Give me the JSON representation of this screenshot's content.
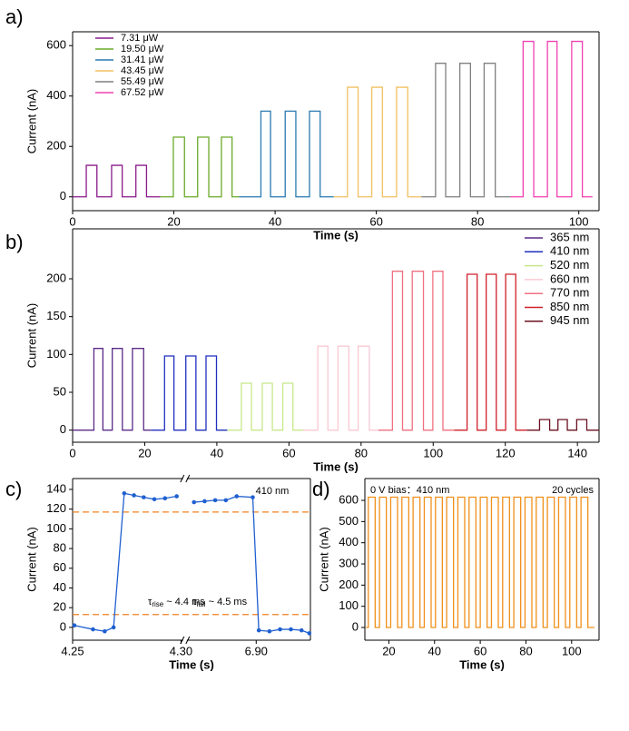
{
  "chart_data": [
    {
      "type": "line",
      "panel_label": "a)",
      "xlabel": "Time (s)",
      "ylabel": "Current (nA)",
      "legend": "upper left",
      "xlim": [
        0,
        104
      ],
      "ylim": [
        -55,
        655
      ],
      "xticks": [
        0,
        20,
        40,
        60,
        80,
        100
      ],
      "yticks": [
        0,
        200,
        400,
        600
      ],
      "series": [
        {
          "name": "7.31 μW",
          "color": "#8b1a8b",
          "x": [
            0,
            2.7,
            2.7,
            4.8,
            4.8,
            7.7,
            7.7,
            9.8,
            9.8,
            12.5,
            12.5,
            14.6,
            14.6,
            17.3
          ],
          "values": [
            0,
            0,
            125,
            125,
            0,
            0,
            125,
            125,
            0,
            0,
            125,
            125,
            0,
            0
          ]
        },
        {
          "name": "19.50 μW",
          "color": "#6aaa2a",
          "x": [
            17.3,
            19.9,
            19.9,
            22.1,
            22.1,
            24.7,
            24.7,
            26.9,
            26.9,
            29.4,
            29.4,
            31.5,
            31.5,
            32.9
          ],
          "values": [
            0,
            0,
            237,
            237,
            0,
            0,
            237,
            237,
            0,
            0,
            237,
            237,
            0,
            0
          ]
        },
        {
          "name": "31.41 μW",
          "color": "#2a7ab0",
          "x": [
            32.9,
            37.2,
            37.2,
            39.1,
            39.1,
            42.0,
            42.0,
            44.1,
            44.1,
            46.8,
            46.8,
            48.9,
            48.9,
            51.6
          ],
          "values": [
            0,
            0,
            340,
            340,
            0,
            0,
            340,
            340,
            0,
            0,
            340,
            340,
            0,
            0
          ]
        },
        {
          "name": "43.45 μW",
          "color": "#f0c060",
          "x": [
            51.6,
            54.3,
            54.3,
            56.4,
            56.4,
            59.1,
            59.1,
            61.2,
            61.2,
            64.0,
            64.0,
            66.2,
            66.2,
            68.9
          ],
          "values": [
            0,
            0,
            435,
            435,
            0,
            0,
            435,
            435,
            0,
            0,
            435,
            435,
            0,
            0
          ]
        },
        {
          "name": "55.49 μW",
          "color": "#808080",
          "x": [
            68.9,
            71.7,
            71.7,
            73.7,
            73.7,
            76.5,
            76.5,
            78.6,
            78.6,
            81.3,
            81.3,
            83.5,
            83.5,
            86.5
          ],
          "values": [
            0,
            0,
            530,
            530,
            0,
            0,
            530,
            530,
            0,
            0,
            530,
            530,
            0,
            0
          ]
        },
        {
          "name": "67.52 μW",
          "color": "#f040b0",
          "x": [
            86.5,
            89.0,
            89.0,
            91.1,
            91.1,
            93.8,
            93.8,
            95.7,
            95.7,
            98.6,
            98.6,
            100.7,
            100.7,
            102.7
          ],
          "values": [
            0,
            0,
            617,
            617,
            0,
            0,
            617,
            617,
            0,
            0,
            617,
            617,
            0,
            0
          ]
        }
      ]
    },
    {
      "type": "line",
      "panel_label": "b)",
      "xlabel": "Time (s)",
      "ylabel": "Current (nA)",
      "legend": "upper right",
      "xlim": [
        0,
        146
      ],
      "ylim": [
        -16,
        266
      ],
      "xticks": [
        0,
        20,
        40,
        60,
        80,
        100,
        120,
        140
      ],
      "yticks": [
        0,
        50,
        100,
        150,
        200
      ],
      "series": [
        {
          "name": "365 nm",
          "color": "#5b2a86",
          "x": [
            0,
            5.9,
            5.9,
            8.4,
            8.4,
            11.0,
            11.0,
            13.8,
            13.8,
            16.6,
            16.6,
            19.7,
            19.7,
            21.7
          ],
          "values": [
            0,
            0,
            108,
            108,
            0,
            0,
            108,
            108,
            0,
            0,
            108,
            108,
            0,
            0
          ]
        },
        {
          "name": "410 nm",
          "color": "#1f2fbf",
          "x": [
            21.7,
            25.5,
            25.5,
            28.1,
            28.1,
            31.4,
            31.4,
            34.2,
            34.2,
            37.0,
            37.0,
            39.9,
            39.9,
            42.9
          ],
          "values": [
            0,
            0,
            98,
            98,
            0,
            0,
            98,
            98,
            0,
            0,
            98,
            98,
            0,
            0
          ]
        },
        {
          "name": "520 nm",
          "color": "#c8e88a",
          "x": [
            42.9,
            46.8,
            46.8,
            49.6,
            49.6,
            52.6,
            52.6,
            55.4,
            55.4,
            58.3,
            58.3,
            61.1,
            61.1,
            63.9
          ],
          "values": [
            0,
            0,
            62,
            62,
            0,
            0,
            62,
            62,
            0,
            0,
            62,
            62,
            0,
            0
          ]
        },
        {
          "name": "660 nm",
          "color": "#f9c9d4",
          "x": [
            63.9,
            68.0,
            68.0,
            70.8,
            70.8,
            73.6,
            73.6,
            76.6,
            76.6,
            79.2,
            79.2,
            82.3,
            82.3,
            84.8
          ],
          "values": [
            0,
            0,
            111,
            111,
            0,
            0,
            111,
            111,
            0,
            0,
            111,
            111,
            0,
            0
          ]
        },
        {
          "name": "770 nm",
          "color": "#f07080",
          "x": [
            84.8,
            88.7,
            88.7,
            91.5,
            91.5,
            94.2,
            94.2,
            97.3,
            97.3,
            99.9,
            99.9,
            102.7,
            102.7,
            105.8
          ],
          "values": [
            0,
            0,
            210,
            210,
            0,
            0,
            210,
            210,
            0,
            0,
            210,
            210,
            0,
            0
          ]
        },
        {
          "name": "850 nm",
          "color": "#d0202a",
          "x": [
            105.8,
            109.4,
            109.4,
            112.2,
            112.2,
            114.7,
            114.7,
            117.5,
            117.5,
            120.1,
            120.1,
            122.9,
            122.9,
            126.0
          ],
          "values": [
            0,
            0,
            206,
            206,
            0,
            0,
            206,
            206,
            0,
            0,
            206,
            206,
            0,
            0
          ]
        },
        {
          "name": "945 nm",
          "color": "#6b1020",
          "x": [
            126.0,
            129.5,
            129.5,
            132.3,
            132.3,
            134.6,
            134.6,
            137.2,
            137.2,
            139.8,
            139.8,
            142.6,
            142.6,
            146.0
          ],
          "values": [
            0,
            0,
            14,
            14,
            0,
            0,
            14,
            14,
            0,
            0,
            14,
            14,
            0,
            0
          ]
        }
      ]
    },
    {
      "type": "line",
      "panel_label": "c)",
      "xlabel": "Time (s)",
      "ylabel": "Current (nA)",
      "markers": true,
      "x_segments": [
        {
          "xlim": [
            4.25,
            4.301
          ],
          "xticks": [
            4.25,
            {
              "value": 4.3,
              "label": "4.30"
            }
          ]
        },
        {
          "xlim": [
            6.868,
            6.925
          ],
          "xticks": [
            {
              "value": 6.9,
              "label": "6.90"
            }
          ]
        }
      ],
      "ylim": [
        -13,
        151
      ],
      "yticks": [
        0,
        20,
        40,
        60,
        80,
        100,
        120,
        140
      ],
      "hlines": [
        117,
        13
      ],
      "hline_color": "#f08020",
      "annotations": [
        {
          "text": "410 nm"
        },
        {
          "symbol": "τ",
          "subscript": "rise",
          "text": "~ 4.4 ms"
        },
        {
          "symbol": "τ",
          "subscript": "fall",
          "text": "~ 4.5 ms"
        }
      ],
      "series": [
        {
          "segment": 0,
          "color": "#2060d0",
          "x": [
            4.2508,
            4.2594,
            4.2648,
            4.2689,
            4.2738,
            4.2783,
            4.2828,
            4.2877,
            4.2926,
            4.298
          ],
          "values": [
            2,
            -2,
            -4,
            0,
            136,
            134,
            132,
            130,
            131,
            133
          ]
        },
        {
          "segment": 1,
          "color": "#2060d0",
          "x": [
            6.8713,
            6.8762,
            6.8811,
            6.886,
            6.891,
            6.8984,
            6.9012,
            6.9061,
            6.911,
            6.916,
            6.9209,
            6.9245
          ],
          "values": [
            127,
            128,
            129,
            129,
            133,
            132,
            -3,
            -4,
            -2,
            -2,
            -3,
            -6
          ]
        }
      ]
    },
    {
      "type": "line",
      "panel_label": "d)",
      "xlabel": "Time (s)",
      "ylabel": "Current (nA)",
      "xlim": [
        9.5,
        112
      ],
      "ylim": [
        -60,
        703
      ],
      "xticks": [
        20,
        40,
        60,
        80,
        100
      ],
      "yticks": [
        0,
        100,
        200,
        300,
        400,
        500,
        600
      ],
      "annotations": [
        {
          "text": "0 V bias：410 nm"
        },
        {
          "text": "20 cycles"
        }
      ],
      "series": [
        {
          "color": "#f0901a",
          "x": [
            10,
            11,
            11,
            14,
            14,
            15.9,
            15.9,
            18.9,
            18.9,
            20.8,
            20.8,
            23.8,
            23.8,
            25.7,
            25.7,
            28.7,
            28.7,
            30.6,
            30.6,
            33.6,
            33.6,
            35.5,
            35.5,
            38.5,
            38.5,
            40.4,
            40.4,
            43.4,
            43.4,
            45.3,
            45.3,
            48.3,
            48.3,
            50.2,
            50.2,
            53.2,
            53.2,
            55.1,
            55.1,
            58.1,
            58.1,
            60,
            60,
            63,
            63,
            64.9,
            64.9,
            67.9,
            67.9,
            69.8,
            69.8,
            72.8,
            72.8,
            74.7,
            74.7,
            77.7,
            77.7,
            79.6,
            79.6,
            82.6,
            82.6,
            84.5,
            84.5,
            87.5,
            87.5,
            89.4,
            89.4,
            92.4,
            92.4,
            94.3,
            94.3,
            97.3,
            97.3,
            99.2,
            99.2,
            102.2,
            102.2,
            104.1,
            104.1,
            107.1,
            107.1,
            110
          ],
          "values": [
            0,
            0,
            615,
            615,
            0,
            0,
            615,
            615,
            0,
            0,
            615,
            615,
            0,
            0,
            615,
            615,
            0,
            0,
            615,
            615,
            0,
            0,
            615,
            615,
            0,
            0,
            615,
            615,
            0,
            0,
            615,
            615,
            0,
            0,
            615,
            615,
            0,
            0,
            615,
            615,
            0,
            0,
            615,
            615,
            0,
            0,
            615,
            615,
            0,
            0,
            615,
            615,
            0,
            0,
            615,
            615,
            0,
            0,
            615,
            615,
            0,
            0,
            615,
            615,
            0,
            0,
            615,
            615,
            0,
            0,
            615,
            615,
            0,
            0,
            615,
            615,
            0,
            0,
            615,
            615,
            0,
            0
          ]
        }
      ]
    }
  ]
}
